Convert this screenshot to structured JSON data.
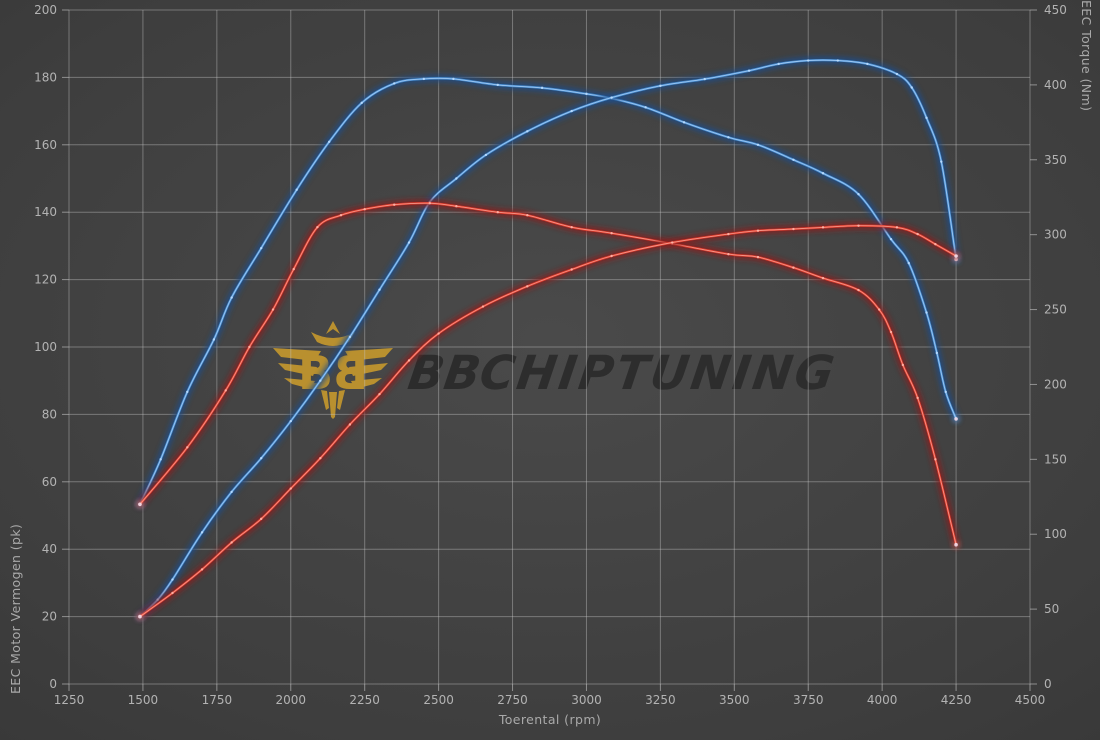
{
  "watermark": {
    "bold": "BB",
    "rest": "CHIPTUNING",
    "emblem_icon": "bb-eagle-emblem",
    "gold": "#c0952e",
    "text_color": "#2b2b2b"
  },
  "colors": {
    "background": "#3e3e3e",
    "grid": "#c6c6c6",
    "tick_text": "#b3b3b3",
    "axis_title_text": "#a9a9a9",
    "blue_halo": "#1c4d8c",
    "blue_line": "#4a8fd4",
    "blue_bright": "#b9dcff",
    "red_halo": "#8c1c1c",
    "red_line": "#e23b2b",
    "red_bright": "#ffb3a6"
  },
  "chart_data": {
    "type": "line",
    "title": "",
    "xlabel": "Toerental (rpm)",
    "ylabel_left": "EEC Motor Vermogen (pk)",
    "ylabel_right": "EEC Torque (Nm)",
    "x_range": [
      1250,
      4500
    ],
    "y_left_range": [
      0,
      200
    ],
    "y_right_range": [
      0,
      450
    ],
    "x_ticks": [
      1250,
      1500,
      1750,
      2000,
      2250,
      2500,
      2750,
      3000,
      3250,
      3500,
      3750,
      4000,
      4250,
      4500
    ],
    "y_left_ticks": [
      0,
      20,
      40,
      60,
      80,
      100,
      120,
      140,
      160,
      180,
      200
    ],
    "y_right_ticks": [
      0,
      50,
      100,
      150,
      200,
      250,
      300,
      350,
      400,
      450
    ],
    "grid": "on",
    "legend": "none",
    "series": [
      {
        "name": "blue-torque",
        "unit": "Nm",
        "axis": "right",
        "color_key": "blue",
        "points": [
          [
            1490,
            120
          ],
          [
            1560,
            150
          ],
          [
            1650,
            195
          ],
          [
            1740,
            230
          ],
          [
            1800,
            258
          ],
          [
            1900,
            291
          ],
          [
            2020,
            330
          ],
          [
            2130,
            362
          ],
          [
            2240,
            388
          ],
          [
            2350,
            401
          ],
          [
            2450,
            404
          ],
          [
            2550,
            404
          ],
          [
            2700,
            400
          ],
          [
            2850,
            398
          ],
          [
            3000,
            394
          ],
          [
            3085,
            391
          ],
          [
            3200,
            385
          ],
          [
            3330,
            375
          ],
          [
            3480,
            365
          ],
          [
            3580,
            360
          ],
          [
            3700,
            350
          ],
          [
            3800,
            341
          ],
          [
            3920,
            327
          ],
          [
            4030,
            297
          ],
          [
            4090,
            281
          ],
          [
            4150,
            248
          ],
          [
            4185,
            221
          ],
          [
            4215,
            195
          ],
          [
            4250,
            177
          ]
        ]
      },
      {
        "name": "blue-power",
        "unit": "pk",
        "axis": "left",
        "color_key": "blue",
        "points": [
          [
            1490,
            20
          ],
          [
            1550,
            25
          ],
          [
            1600,
            31
          ],
          [
            1700,
            45
          ],
          [
            1800,
            57
          ],
          [
            1900,
            67
          ],
          [
            2000,
            78
          ],
          [
            2100,
            90
          ],
          [
            2200,
            103
          ],
          [
            2300,
            117
          ],
          [
            2400,
            131
          ],
          [
            2470,
            143
          ],
          [
            2560,
            150
          ],
          [
            2660,
            157
          ],
          [
            2800,
            164
          ],
          [
            2950,
            170
          ],
          [
            3085,
            174
          ],
          [
            3250,
            177.5
          ],
          [
            3400,
            179.5
          ],
          [
            3550,
            182
          ],
          [
            3650,
            184
          ],
          [
            3750,
            185
          ],
          [
            3850,
            185
          ],
          [
            3950,
            184
          ],
          [
            4050,
            181
          ],
          [
            4100,
            177
          ],
          [
            4150,
            168
          ],
          [
            4200,
            155
          ],
          [
            4250,
            126
          ]
        ]
      },
      {
        "name": "red-torque",
        "unit": "Nm",
        "axis": "right",
        "color_key": "red",
        "points": [
          [
            1490,
            120
          ],
          [
            1650,
            158
          ],
          [
            1780,
            196
          ],
          [
            1860,
            225
          ],
          [
            1940,
            250
          ],
          [
            2010,
            277
          ],
          [
            2090,
            305
          ],
          [
            2170,
            313
          ],
          [
            2250,
            317
          ],
          [
            2350,
            320
          ],
          [
            2470,
            321
          ],
          [
            2560,
            319
          ],
          [
            2700,
            315
          ],
          [
            2800,
            313
          ],
          [
            2950,
            305
          ],
          [
            3085,
            301
          ],
          [
            3290,
            294
          ],
          [
            3480,
            287
          ],
          [
            3580,
            285
          ],
          [
            3700,
            278
          ],
          [
            3800,
            271
          ],
          [
            3920,
            263
          ],
          [
            3990,
            250
          ],
          [
            4030,
            235
          ],
          [
            4070,
            213
          ],
          [
            4120,
            191
          ],
          [
            4180,
            150
          ],
          [
            4250,
            93
          ]
        ]
      },
      {
        "name": "red-power",
        "unit": "pk",
        "axis": "left",
        "color_key": "red",
        "points": [
          [
            1490,
            20
          ],
          [
            1600,
            27
          ],
          [
            1700,
            34
          ],
          [
            1800,
            42
          ],
          [
            1900,
            49
          ],
          [
            2000,
            58
          ],
          [
            2100,
            67
          ],
          [
            2200,
            77
          ],
          [
            2300,
            86
          ],
          [
            2400,
            96
          ],
          [
            2500,
            104
          ],
          [
            2650,
            112
          ],
          [
            2800,
            118
          ],
          [
            2950,
            123
          ],
          [
            3085,
            127
          ],
          [
            3290,
            131
          ],
          [
            3480,
            133.5
          ],
          [
            3580,
            134.5
          ],
          [
            3700,
            135
          ],
          [
            3800,
            135.5
          ],
          [
            3920,
            136
          ],
          [
            4050,
            135.5
          ],
          [
            4120,
            133.5
          ],
          [
            4180,
            130.5
          ],
          [
            4250,
            127
          ]
        ]
      }
    ]
  }
}
